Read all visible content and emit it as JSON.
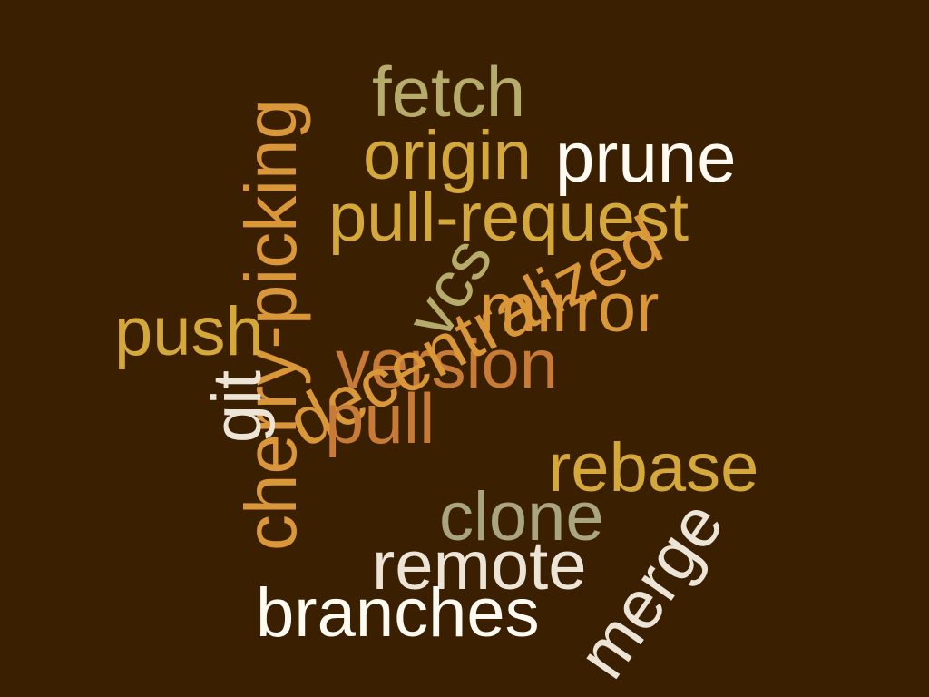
{
  "background": "#3a1f00",
  "palette": {
    "olive": "#b5ab6a",
    "gold": "#d4a83a",
    "amber": "#d9973a",
    "copper": "#c77b36",
    "cream": "#ece4d6",
    "white": "#fffbf2",
    "sage": "#a9a67e"
  },
  "words": [
    {
      "id": "fetch",
      "text": "fetch",
      "color": "#b5ab6a"
    },
    {
      "id": "origin",
      "text": "origin",
      "color": "#d4a83a"
    },
    {
      "id": "prune",
      "text": "prune",
      "color": "#fffbf2"
    },
    {
      "id": "cherry-picking",
      "text": "cherry-picking",
      "color": "#d9973a"
    },
    {
      "id": "pull-request",
      "text": "pull-request",
      "color": "#d4a83a"
    },
    {
      "id": "vcs",
      "text": "vcs",
      "color": "#b5ab6a"
    },
    {
      "id": "mirror",
      "text": "mirror",
      "color": "#d9973a"
    },
    {
      "id": "push",
      "text": "push",
      "color": "#d4a83a"
    },
    {
      "id": "version",
      "text": "version",
      "color": "#c77b36"
    },
    {
      "id": "decentralized",
      "text": "decentralized",
      "color": "#d9973a"
    },
    {
      "id": "git",
      "text": "git",
      "color": "#ece4d6"
    },
    {
      "id": "pull",
      "text": "pull",
      "color": "#c77b36"
    },
    {
      "id": "rebase",
      "text": "rebase",
      "color": "#d4a83a"
    },
    {
      "id": "clone",
      "text": "clone",
      "color": "#a9a67e"
    },
    {
      "id": "remote",
      "text": "remote",
      "color": "#ece4d6"
    },
    {
      "id": "merge",
      "text": "merge",
      "color": "#ece4d6"
    },
    {
      "id": "branches",
      "text": "branches",
      "color": "#fffbf2"
    }
  ]
}
